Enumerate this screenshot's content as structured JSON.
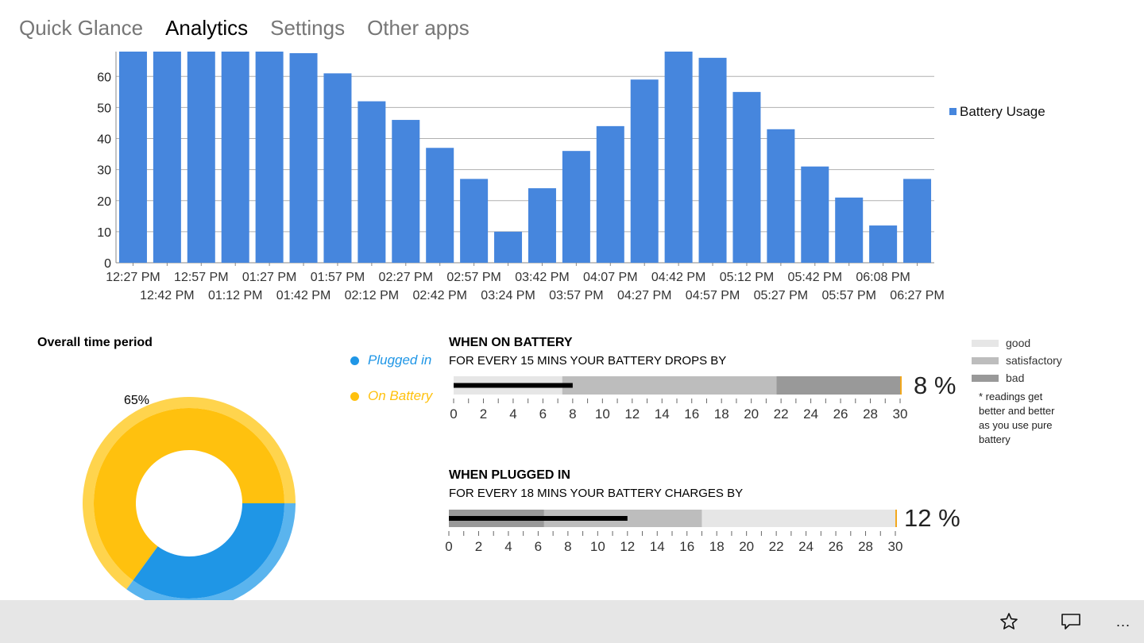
{
  "nav": {
    "tabs": [
      {
        "label": "Quick Glance",
        "active": false
      },
      {
        "label": "Analytics",
        "active": true
      },
      {
        "label": "Settings",
        "active": false
      },
      {
        "label": "Other apps",
        "active": false
      }
    ]
  },
  "chart_data": {
    "type": "bar",
    "categories": [
      "12:27 PM",
      "12:42 PM",
      "12:57 PM",
      "01:12 PM",
      "01:27 PM",
      "01:42 PM",
      "01:57 PM",
      "02:12 PM",
      "02:27 PM",
      "02:42 PM",
      "02:57 PM",
      "03:24 PM",
      "03:42 PM",
      "03:57 PM",
      "04:07 PM",
      "04:27 PM",
      "04:42 PM",
      "04:57 PM",
      "05:12 PM",
      "05:27 PM",
      "05:42 PM",
      "05:57 PM",
      "06:08 PM",
      "06:27 PM"
    ],
    "series": [
      {
        "name": "Battery Usage",
        "values": [
          68,
          68,
          68,
          68,
          68,
          67.5,
          61,
          52,
          46,
          37,
          27,
          10,
          24,
          36,
          44,
          59,
          68,
          66,
          55,
          43,
          31,
          21,
          12,
          27
        ]
      }
    ],
    "ylim": [
      0,
      68
    ],
    "yticks": [
      0,
      10,
      20,
      30,
      40,
      50,
      60
    ],
    "grid": true,
    "legend": "right",
    "color": "#4686dd"
  },
  "donut": {
    "title": "Overall time period",
    "label": "65%",
    "on_battery_pct": 65,
    "plugged_in_pct": 35,
    "colors": {
      "on_battery": "#ffc10e",
      "plugged_in": "#1f96e6"
    }
  },
  "legend": {
    "plugged_in": "Plugged in",
    "on_battery": "On Battery",
    "plugged_color": "#1f96e6",
    "battery_color": "#ffc10e"
  },
  "battery_section": {
    "title": "WHEN ON BATTERY",
    "subtitle": "FOR EVERY 15 MINS YOUR BATTERY DROPS BY",
    "percent_label": "8 %",
    "value": 8,
    "bands": [
      7.3,
      21.7,
      30
    ],
    "band_order": [
      "good",
      "satisfactory",
      "bad"
    ],
    "ticks": [
      "0",
      "2",
      "4",
      "6",
      "8",
      "10",
      "12",
      "14",
      "16",
      "18",
      "20",
      "22",
      "24",
      "26",
      "28",
      "30"
    ]
  },
  "plugged_section": {
    "title": "WHEN PLUGGED IN",
    "subtitle": "FOR EVERY 18 MINS YOUR BATTERY CHARGES BY",
    "percent_label": "12 %",
    "value": 12,
    "bands": [
      6.4,
      17,
      30
    ],
    "band_order": [
      "bad",
      "satisfactory",
      "good"
    ],
    "ticks": [
      "0",
      "2",
      "4",
      "6",
      "8",
      "10",
      "12",
      "14",
      "16",
      "18",
      "20",
      "22",
      "24",
      "26",
      "28",
      "30"
    ]
  },
  "key": {
    "good": "good",
    "satisfactory": "satisfactory",
    "bad": "bad",
    "note_lines": [
      "* readings get",
      "better and better",
      "as you use pure",
      "battery"
    ],
    "colors": {
      "good": "#e6e6e6",
      "satisfactory": "#bdbdbd",
      "bad": "#999999"
    }
  },
  "bottom_bar": {
    "icons": [
      "star-icon",
      "comment-icon",
      "more-icon"
    ],
    "more_label": "..."
  }
}
